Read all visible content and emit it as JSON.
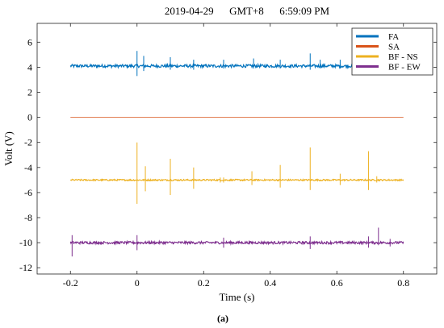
{
  "chart_data": {
    "type": "line",
    "title": "2019-04-29      GMT+8      6:59:09 PM",
    "xlabel": "Time (s)",
    "ylabel": "Volt (V)",
    "xlim": [
      -0.3,
      0.9
    ],
    "ylim": [
      -12.5,
      7.5
    ],
    "xticks": [
      -0.2,
      0,
      0.2,
      0.4,
      0.6,
      0.8
    ],
    "xtick_labels": [
      "-0.2",
      "0",
      "0.2",
      "0.4",
      "0.6",
      "0.8"
    ],
    "yticks": [
      -12,
      -10,
      -8,
      -6,
      -4,
      -2,
      0,
      2,
      4,
      6
    ],
    "ytick_labels": [
      "-12",
      "-10",
      "-8",
      "-6",
      "-4",
      "-2",
      "0",
      "2",
      "4",
      "6"
    ],
    "grid": false,
    "legend_position": "top-right",
    "caption": "(a)",
    "series": [
      {
        "name": "FA",
        "color": "#0072BD",
        "baseline": 4.1,
        "noise": 0.12,
        "x_range": [
          -0.2,
          0.8
        ],
        "spikes": [
          {
            "x": 0.0,
            "hi": 5.3,
            "lo": 3.3
          },
          {
            "x": 0.02,
            "hi": 4.9,
            "lo": 3.7
          },
          {
            "x": 0.1,
            "hi": 4.8,
            "lo": 3.8
          },
          {
            "x": 0.17,
            "hi": 4.6,
            "lo": 3.8
          },
          {
            "x": 0.26,
            "hi": 4.6,
            "lo": 3.9
          },
          {
            "x": 0.35,
            "hi": 4.7,
            "lo": 3.9
          },
          {
            "x": 0.43,
            "hi": 4.6,
            "lo": 3.9
          },
          {
            "x": 0.52,
            "hi": 5.1,
            "lo": 3.8
          },
          {
            "x": 0.55,
            "hi": 4.6,
            "lo": 3.9
          },
          {
            "x": 0.61,
            "hi": 4.6,
            "lo": 3.9
          }
        ]
      },
      {
        "name": "SA",
        "color": "#D95319",
        "baseline": 0,
        "noise": 0,
        "x_range": [
          -0.2,
          0.8
        ],
        "spikes": []
      },
      {
        "name": "BF - NS",
        "color": "#EDB120",
        "baseline": -5.0,
        "noise": 0.06,
        "x_range": [
          -0.2,
          0.8
        ],
        "spikes": [
          {
            "x": 0.0,
            "hi": -2.0,
            "lo": -6.9
          },
          {
            "x": 0.025,
            "hi": -3.9,
            "lo": -5.9
          },
          {
            "x": 0.1,
            "hi": -3.3,
            "lo": -6.2
          },
          {
            "x": 0.17,
            "hi": -4.0,
            "lo": -5.7
          },
          {
            "x": 0.25,
            "hi": -4.8,
            "lo": -5.2
          },
          {
            "x": 0.26,
            "hi": -4.8,
            "lo": -5.2
          },
          {
            "x": 0.345,
            "hi": -4.3,
            "lo": -5.4
          },
          {
            "x": 0.43,
            "hi": -3.8,
            "lo": -5.6
          },
          {
            "x": 0.52,
            "hi": -2.4,
            "lo": -5.8
          },
          {
            "x": 0.61,
            "hi": -4.5,
            "lo": -5.4
          },
          {
            "x": 0.695,
            "hi": -2.7,
            "lo": -5.8
          },
          {
            "x": 0.72,
            "hi": -4.7,
            "lo": -5.2
          }
        ]
      },
      {
        "name": "BF - EW",
        "color": "#7E2F8E",
        "baseline": -10.0,
        "noise": 0.1,
        "x_range": [
          -0.2,
          0.8
        ],
        "spikes": [
          {
            "x": -0.195,
            "hi": -9.4,
            "lo": -11.1
          },
          {
            "x": 0.0,
            "hi": -9.4,
            "lo": -10.6
          },
          {
            "x": 0.26,
            "hi": -9.6,
            "lo": -10.4
          },
          {
            "x": 0.52,
            "hi": -9.5,
            "lo": -10.5
          },
          {
            "x": 0.695,
            "hi": -9.5,
            "lo": -10.4
          },
          {
            "x": 0.725,
            "hi": -8.8,
            "lo": -10.2
          },
          {
            "x": 0.76,
            "hi": -9.7,
            "lo": -10.3
          }
        ]
      }
    ]
  }
}
